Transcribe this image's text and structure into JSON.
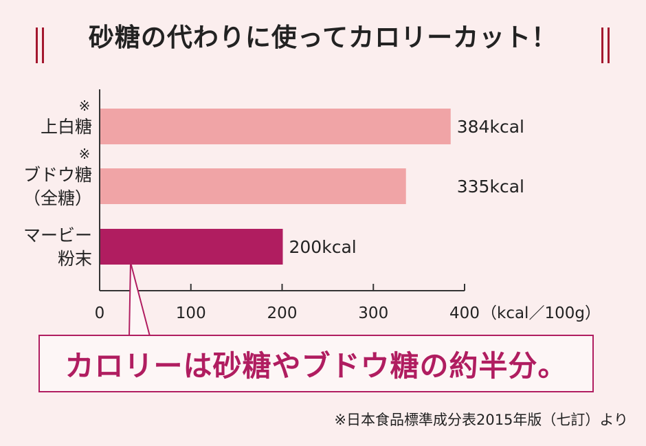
{
  "title": "砂糖の代わりに使ってカロリーカット！",
  "chart_data": {
    "type": "bar",
    "orientation": "horizontal",
    "unit_label": "（kcal／100g）",
    "xlim": [
      0,
      400
    ],
    "ticks": [
      0,
      100,
      200,
      300,
      400
    ],
    "bars": [
      {
        "mark": "※",
        "label_lines": [
          "上白糖"
        ],
        "value": 384,
        "value_label": "384kcal",
        "color": "#f0a4a6"
      },
      {
        "mark": "※",
        "label_lines": [
          "ブドウ糖",
          "（全糖）"
        ],
        "value": 335,
        "value_label": "335kcal",
        "color": "#f0a4a6"
      },
      {
        "mark": "",
        "label_lines": [
          "マービー",
          "粉末"
        ],
        "value": 200,
        "value_label": "200kcal",
        "color": "#b01d60"
      }
    ]
  },
  "callout": "カロリーは砂糖やブドウ糖の約半分。",
  "footnote": "※日本食品標準成分表2015年版（七訂）より",
  "colors": {
    "accent": "#b01d60",
    "deco": "#a3172e",
    "bar_light": "#f0a4a6"
  }
}
